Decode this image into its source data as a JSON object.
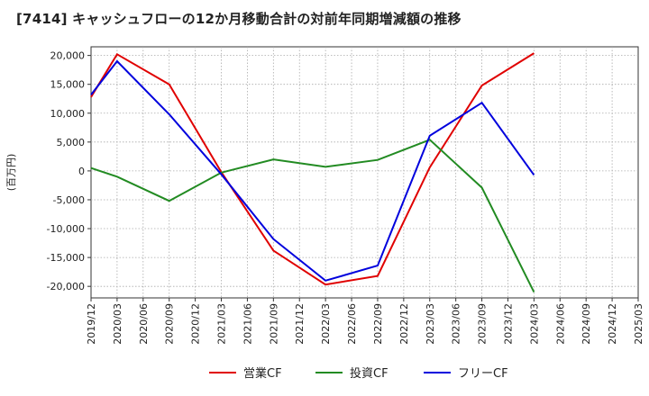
{
  "chart_data": {
    "type": "line",
    "title": "[7414]  キャッシュフローの12か月移動合計の対前年同期増減額の推移",
    "ylabel": "(百万円)",
    "xlabel": "",
    "ylim": [
      -22000,
      21500
    ],
    "grid": true,
    "legend_position": "bottom",
    "yticks": [
      20000,
      15000,
      10000,
      5000,
      0,
      -5000,
      -10000,
      -15000,
      -20000
    ],
    "ytick_labels": [
      "20,000",
      "15,000",
      "10,000",
      "5,000",
      "0",
      "-5,000",
      "-10,000",
      "-15,000",
      "-20,000"
    ],
    "categories": [
      "2019/12",
      "2020/03",
      "2020/06",
      "2020/09",
      "2020/12",
      "2021/03",
      "2021/06",
      "2021/09",
      "2021/12",
      "2022/03",
      "2022/06",
      "2022/09",
      "2022/12",
      "2023/03",
      "2023/06",
      "2023/09",
      "2023/12",
      "2024/03",
      "2024/06",
      "2024/09",
      "2024/12",
      "2025/03"
    ],
    "series": [
      {
        "name": "営業CF",
        "color": "#e00000",
        "points": [
          [
            "2019/12",
            12800
          ],
          [
            "2020/03",
            20200
          ],
          [
            "2020/09",
            15000
          ],
          [
            "2021/03",
            -200
          ],
          [
            "2021/09",
            -13800
          ],
          [
            "2022/03",
            -19700
          ],
          [
            "2022/09",
            -18200
          ],
          [
            "2023/03",
            600
          ],
          [
            "2023/09",
            14800
          ],
          [
            "2024/03",
            20400
          ]
        ]
      },
      {
        "name": "投資CF",
        "color": "#228b22",
        "points": [
          [
            "2019/12",
            500
          ],
          [
            "2020/03",
            -1000
          ],
          [
            "2020/09",
            -5200
          ],
          [
            "2021/03",
            -300
          ],
          [
            "2021/09",
            2000
          ],
          [
            "2022/03",
            700
          ],
          [
            "2022/09",
            1900
          ],
          [
            "2023/03",
            5400
          ],
          [
            "2023/09",
            -2900
          ],
          [
            "2024/03",
            -21000
          ]
        ]
      },
      {
        "name": "フリーCF",
        "color": "#0000dd",
        "points": [
          [
            "2019/12",
            13200
          ],
          [
            "2020/03",
            19000
          ],
          [
            "2020/09",
            9800
          ],
          [
            "2021/03",
            -600
          ],
          [
            "2021/09",
            -11800
          ],
          [
            "2022/03",
            -19000
          ],
          [
            "2022/09",
            -16400
          ],
          [
            "2023/03",
            6100
          ],
          [
            "2023/09",
            11800
          ],
          [
            "2024/03",
            -700
          ]
        ]
      }
    ]
  }
}
